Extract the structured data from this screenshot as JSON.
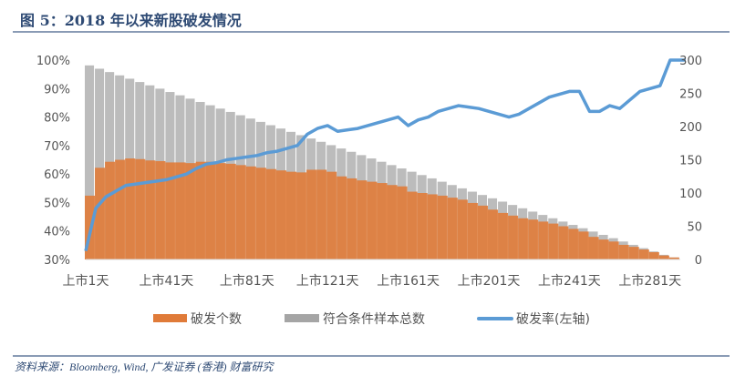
{
  "title": "图 5：2018 年以来新股破发情况",
  "source": "资料来源：Bloomberg, Wind, 广发证券 (香港) 财富研究",
  "chart_data": {
    "type": "bar",
    "title": "",
    "x_tick_labels": [
      "上市1天",
      "上市41天",
      "上市81天",
      "上市121天",
      "上市161天",
      "上市201天",
      "上市241天",
      "上市281天"
    ],
    "days": [
      1,
      6,
      11,
      16,
      21,
      26,
      31,
      36,
      41,
      46,
      51,
      56,
      61,
      66,
      71,
      76,
      81,
      86,
      91,
      96,
      101,
      106,
      111,
      116,
      121,
      126,
      131,
      136,
      141,
      146,
      151,
      156,
      161,
      166,
      171,
      176,
      181,
      186,
      191,
      196,
      201,
      206,
      211,
      216,
      221,
      226,
      231,
      236,
      241,
      246,
      251,
      256,
      261,
      266,
      271,
      276,
      281,
      286,
      291
    ],
    "left_axis": {
      "ylim": [
        30,
        100
      ],
      "ticks": [
        "30%",
        "40%",
        "50%",
        "60%",
        "70%",
        "80%",
        "90%",
        "100%"
      ]
    },
    "right_axis": {
      "ylim": [
        0,
        300
      ],
      "ticks": [
        "0",
        "50",
        "100",
        "150",
        "200",
        "250",
        "300"
      ]
    },
    "series": [
      {
        "name": "破发个数",
        "type": "bar",
        "axis": "right",
        "color": "#e07b39",
        "values": [
          96,
          138,
          147,
          150,
          152,
          151,
          149,
          148,
          146,
          146,
          145,
          147,
          147,
          145,
          144,
          142,
          140,
          138,
          136,
          134,
          132,
          131,
          135,
          135,
          132,
          125,
          122,
          119,
          117,
          115,
          112,
          110,
          102,
          100,
          98,
          96,
          93,
          90,
          85,
          81,
          75,
          70,
          66,
          62,
          60,
          57,
          54,
          50,
          46,
          42,
          34,
          30,
          27,
          22,
          19,
          15,
          11,
          6,
          3
        ]
      },
      {
        "name": "符合条件样本总数",
        "type": "bar",
        "axis": "right",
        "color": "#a5a5a5",
        "values": [
          292,
          287,
          282,
          277,
          272,
          267,
          262,
          257,
          252,
          247,
          242,
          237,
          232,
          227,
          222,
          217,
          212,
          207,
          202,
          197,
          192,
          187,
          182,
          177,
          172,
          167,
          162,
          157,
          152,
          147,
          142,
          137,
          132,
          127,
          122,
          117,
          112,
          107,
          102,
          97,
          92,
          87,
          82,
          77,
          72,
          67,
          62,
          57,
          52,
          47,
          42,
          37,
          32,
          27,
          22,
          17,
          12,
          7,
          3
        ]
      },
      {
        "name": "破发率(左轴)",
        "type": "line",
        "axis": "left",
        "color": "#5b9bd5",
        "values": [
          33,
          48,
          52,
          54,
          56,
          56.5,
          57,
          57.5,
          58,
          59,
          60,
          62,
          63.5,
          64,
          65,
          65.5,
          66,
          66.5,
          67.5,
          68,
          69,
          70,
          74,
          76,
          77,
          75,
          75.5,
          76,
          77,
          78,
          79,
          80,
          77,
          79,
          80,
          82,
          83,
          84,
          83.5,
          83,
          82,
          81,
          80,
          81,
          83,
          85,
          87,
          88,
          89,
          89,
          82,
          82,
          84,
          83,
          86,
          89,
          90,
          91,
          100
        ]
      }
    ],
    "legend_position": "bottom",
    "grid": false
  }
}
